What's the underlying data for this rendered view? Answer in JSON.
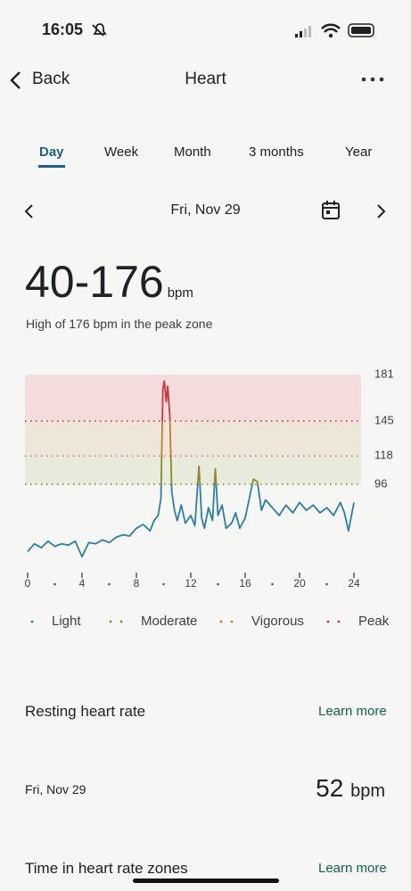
{
  "status": {
    "time": "16:05"
  },
  "nav": {
    "back": "Back",
    "title": "Heart"
  },
  "tabs": {
    "items": [
      "Day",
      "Week",
      "Month",
      "3 months",
      "Year"
    ],
    "selected": 0
  },
  "date": "Fri, Nov 29",
  "summary": {
    "range": "40-176",
    "unit": "bpm",
    "subtitle": "High of 176 bpm in the peak zone"
  },
  "chart_data": {
    "type": "line",
    "x": [
      0,
      0.5,
      1,
      1.5,
      2,
      2.5,
      3,
      3.5,
      4,
      4.5,
      5,
      5.5,
      6,
      6.5,
      7,
      7.5,
      8,
      8.5,
      9,
      9.3,
      9.6,
      9.8,
      9.95,
      10.05,
      10.2,
      10.3,
      10.45,
      10.6,
      10.8,
      11,
      11.3,
      11.6,
      12,
      12.3,
      12.6,
      12.8,
      13,
      13.3,
      13.6,
      13.8,
      14,
      14.3,
      14.6,
      15,
      15.3,
      15.6,
      16,
      16.3,
      16.6,
      16.9,
      17.2,
      17.5,
      18,
      18.5,
      19,
      19.5,
      20,
      20.5,
      21,
      21.5,
      22,
      22.5,
      23,
      23.3,
      23.6,
      24
    ],
    "values": [
      44,
      50,
      47,
      52,
      48,
      50,
      49,
      52,
      40,
      51,
      50,
      53,
      51,
      55,
      57,
      56,
      62,
      65,
      60,
      68,
      72,
      85,
      170,
      176,
      160,
      172,
      150,
      90,
      76,
      68,
      80,
      66,
      72,
      64,
      110,
      70,
      62,
      78,
      68,
      108,
      72,
      80,
      62,
      66,
      74,
      62,
      70,
      85,
      100,
      98,
      76,
      84,
      78,
      72,
      80,
      74,
      82,
      76,
      80,
      74,
      78,
      72,
      82,
      74,
      60,
      82
    ],
    "xlim": [
      0,
      24
    ],
    "xticks": [
      0,
      4,
      8,
      12,
      16,
      20,
      24
    ],
    "ylim": [
      36,
      181
    ],
    "yticks": [
      96,
      118,
      145,
      181
    ],
    "zones": [
      {
        "name": "Light",
        "color": "#2b7fa6"
      },
      {
        "name": "Moderate",
        "color": "#878a2c",
        "min": 96,
        "band": "#e8ebdc"
      },
      {
        "name": "Vigorous",
        "color": "#c27a34",
        "min": 118,
        "band": "#efe6da"
      },
      {
        "name": "Peak",
        "color": "#c8393e",
        "min": 145,
        "band": "#f3dcdb"
      }
    ]
  },
  "resting": {
    "title": "Resting heart rate",
    "link": "Learn more",
    "date": "Fri, Nov 29",
    "value": "52",
    "unit": "bpm"
  },
  "zones_section": {
    "title": "Time in heart rate zones",
    "link": "Learn more"
  }
}
